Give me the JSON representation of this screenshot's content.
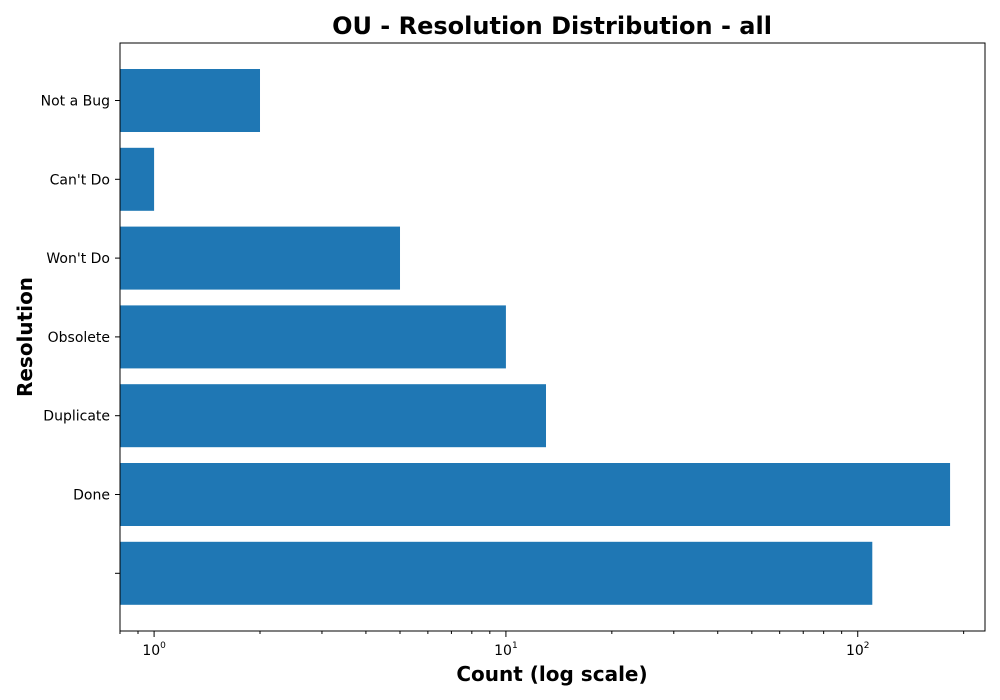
{
  "chart_data": {
    "type": "bar",
    "orientation": "horizontal",
    "title": "OU - Resolution Distribution - all",
    "xlabel": "Count (log scale)",
    "ylabel": "Resolution",
    "x_scale": "log",
    "xlim": [
      0.8,
      230
    ],
    "x_ticks": [
      {
        "value": 1,
        "base": "10",
        "exp": "0"
      },
      {
        "value": 10,
        "base": "10",
        "exp": "1"
      },
      {
        "value": 100,
        "base": "10",
        "exp": "2"
      }
    ],
    "categories": [
      "Not a Bug",
      "Can't Do",
      "Won't Do",
      "Obsolete",
      "Duplicate",
      "Done",
      ""
    ],
    "values": [
      2,
      1,
      5,
      10,
      13,
      183,
      110
    ],
    "colors": {
      "bar": "#1f77b4"
    },
    "grid": false
  }
}
